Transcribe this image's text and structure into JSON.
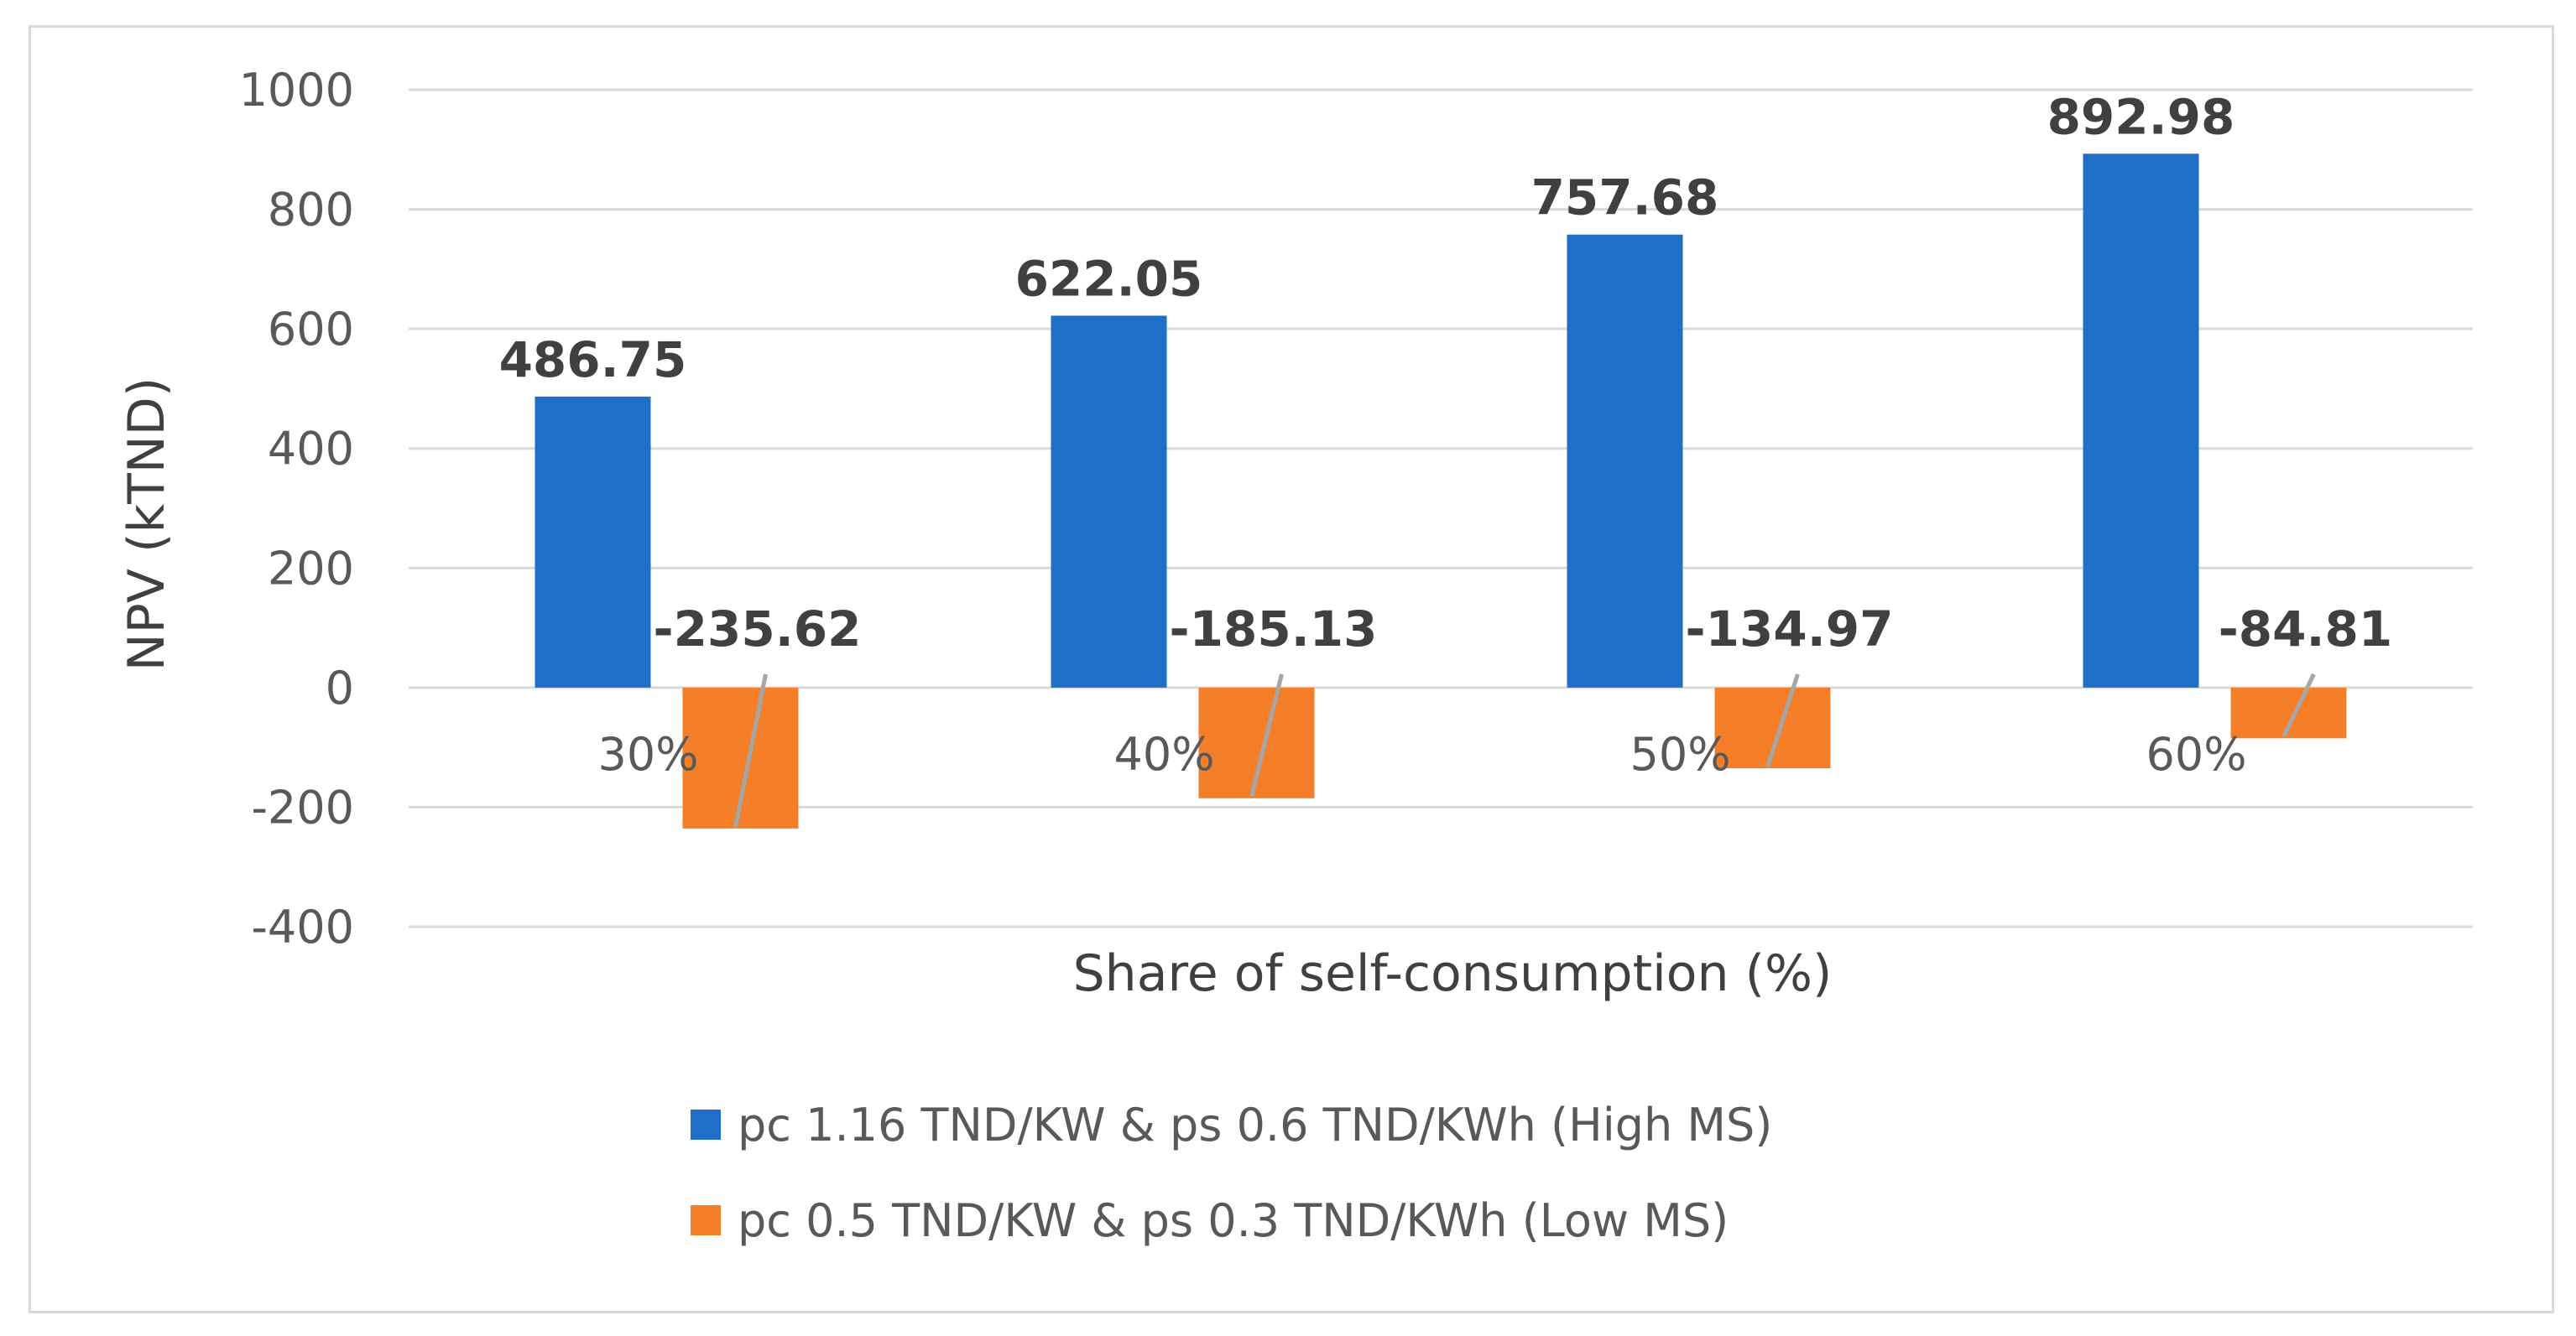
{
  "chart_data": {
    "type": "bar",
    "title": "",
    "xlabel": "Share of self-consumption (%)",
    "ylabel": "NPV (kTND)",
    "categories": [
      "30%",
      "40%",
      "50%",
      "60%"
    ],
    "ylim": [
      -400,
      1000
    ],
    "yticks": [
      1000,
      800,
      600,
      400,
      200,
      0,
      -200,
      -400
    ],
    "grid": true,
    "legend_position": "bottom",
    "series": [
      {
        "name": "pc 1.16 TND/KW & ps 0.6 TND/KWh (High MS)",
        "color": "#1F6FC8",
        "values": [
          486.75,
          622.05,
          757.68,
          892.98
        ],
        "labels": [
          "486.75",
          "622.05",
          "757.68",
          "892.98"
        ]
      },
      {
        "name": "pc 0.5 TND/KW & ps 0.3 TND/KWh (Low MS)",
        "color": "#F57F28",
        "values": [
          -235.62,
          -185.13,
          -134.97,
          -84.81
        ],
        "labels": [
          "-235.62",
          "-185.13",
          "-134.97",
          "-84.81"
        ]
      }
    ],
    "colors": {
      "grid": "#d9d9d9",
      "leader_line": "#a6a6a6"
    }
  }
}
